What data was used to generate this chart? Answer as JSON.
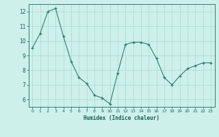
{
  "x": [
    0,
    1,
    2,
    3,
    4,
    5,
    6,
    7,
    8,
    9,
    10,
    11,
    12,
    13,
    14,
    15,
    16,
    17,
    18,
    19,
    20,
    21,
    22,
    23
  ],
  "y": [
    9.5,
    10.5,
    12.0,
    12.2,
    10.3,
    8.6,
    7.5,
    7.1,
    6.3,
    6.1,
    5.7,
    7.8,
    9.75,
    9.9,
    9.9,
    9.75,
    8.8,
    7.5,
    7.0,
    7.6,
    8.1,
    8.3,
    8.5,
    8.5
  ],
  "xlabel": "Humidex (Indice chaleur)",
  "xlim": [
    -0.5,
    23.5
  ],
  "ylim": [
    5.5,
    12.5
  ],
  "yticks": [
    6,
    7,
    8,
    9,
    10,
    11,
    12
  ],
  "xticks": [
    0,
    1,
    2,
    3,
    4,
    5,
    6,
    7,
    8,
    9,
    10,
    11,
    12,
    13,
    14,
    15,
    16,
    17,
    18,
    19,
    20,
    21,
    22,
    23
  ],
  "line_color": "#2d7a70",
  "bg_color": "#cef0ea",
  "grid_color": "#a8d8d2",
  "spine_color": "#2d7a70",
  "label_color": "#1a5c56",
  "tick_label_color": "#1a5c56"
}
